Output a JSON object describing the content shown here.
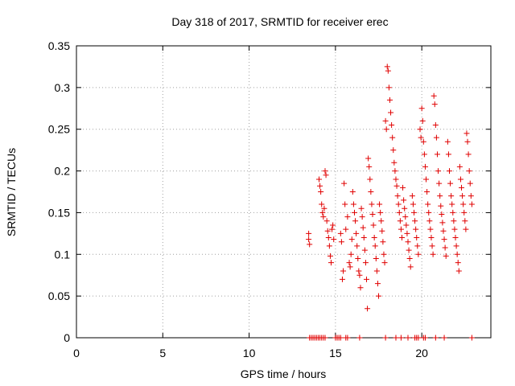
{
  "chart_data": {
    "type": "scatter",
    "title": "Day 318 of 2017, SRMTID for receiver erec",
    "xlabel": "GPS time / hours",
    "ylabel": "SRMTID / TECUs",
    "xlim": [
      0,
      24
    ],
    "ylim": [
      0,
      0.35
    ],
    "grid": true,
    "marker": "+",
    "marker_color": "#e00000",
    "x_ticks": [
      "0",
      "5",
      "10",
      "15",
      "20"
    ],
    "y_ticks": [
      "0",
      "0.05",
      "0.1",
      "0.15",
      "0.2",
      "0.25",
      "0.3",
      "0.35"
    ],
    "series": [
      {
        "name": "SRMTID",
        "points": [
          [
            13.45,
            0.125
          ],
          [
            13.45,
            0.118
          ],
          [
            13.5,
            0.112
          ],
          [
            14.05,
            0.19
          ],
          [
            14.1,
            0.182
          ],
          [
            14.15,
            0.175
          ],
          [
            14.2,
            0.16
          ],
          [
            14.25,
            0.15
          ],
          [
            14.3,
            0.145
          ],
          [
            14.35,
            0.155
          ],
          [
            14.4,
            0.2
          ],
          [
            14.45,
            0.195
          ],
          [
            14.5,
            0.14
          ],
          [
            14.55,
            0.128
          ],
          [
            14.6,
            0.12
          ],
          [
            14.65,
            0.11
          ],
          [
            14.7,
            0.098
          ],
          [
            14.75,
            0.09
          ],
          [
            14.8,
            0.13
          ],
          [
            14.85,
            0.135
          ],
          [
            14.9,
            0.118
          ],
          [
            15.3,
            0.125
          ],
          [
            15.35,
            0.115
          ],
          [
            15.4,
            0.07
          ],
          [
            15.45,
            0.08
          ],
          [
            15.5,
            0.185
          ],
          [
            15.55,
            0.16
          ],
          [
            15.6,
            0.13
          ],
          [
            15.7,
            0.145
          ],
          [
            15.8,
            0.09
          ],
          [
            15.85,
            0.085
          ],
          [
            15.9,
            0.1
          ],
          [
            15.95,
            0.118
          ],
          [
            16.0,
            0.175
          ],
          [
            16.05,
            0.16
          ],
          [
            16.1,
            0.15
          ],
          [
            16.15,
            0.14
          ],
          [
            16.2,
            0.125
          ],
          [
            16.25,
            0.11
          ],
          [
            16.3,
            0.095
          ],
          [
            16.35,
            0.08
          ],
          [
            16.4,
            0.075
          ],
          [
            16.45,
            0.06
          ],
          [
            16.5,
            0.155
          ],
          [
            16.55,
            0.145
          ],
          [
            16.6,
            0.132
          ],
          [
            16.65,
            0.12
          ],
          [
            16.7,
            0.105
          ],
          [
            16.75,
            0.09
          ],
          [
            16.8,
            0.07
          ],
          [
            16.85,
            0.035
          ],
          [
            16.9,
            0.215
          ],
          [
            16.95,
            0.205
          ],
          [
            17.0,
            0.19
          ],
          [
            17.05,
            0.175
          ],
          [
            17.1,
            0.16
          ],
          [
            17.15,
            0.148
          ],
          [
            17.2,
            0.135
          ],
          [
            17.25,
            0.12
          ],
          [
            17.3,
            0.11
          ],
          [
            17.35,
            0.095
          ],
          [
            17.4,
            0.08
          ],
          [
            17.45,
            0.065
          ],
          [
            17.5,
            0.05
          ],
          [
            17.55,
            0.16
          ],
          [
            17.6,
            0.15
          ],
          [
            17.65,
            0.14
          ],
          [
            17.7,
            0.128
          ],
          [
            17.75,
            0.115
          ],
          [
            17.8,
            0.1
          ],
          [
            17.85,
            0.09
          ],
          [
            17.9,
            0.26
          ],
          [
            17.95,
            0.25
          ],
          [
            18.0,
            0.325
          ],
          [
            18.05,
            0.32
          ],
          [
            18.1,
            0.3
          ],
          [
            18.15,
            0.285
          ],
          [
            18.2,
            0.27
          ],
          [
            18.25,
            0.255
          ],
          [
            18.3,
            0.24
          ],
          [
            18.35,
            0.225
          ],
          [
            18.4,
            0.21
          ],
          [
            18.45,
            0.2
          ],
          [
            18.5,
            0.19
          ],
          [
            18.55,
            0.182
          ],
          [
            18.6,
            0.17
          ],
          [
            18.65,
            0.16
          ],
          [
            18.7,
            0.15
          ],
          [
            18.75,
            0.14
          ],
          [
            18.8,
            0.13
          ],
          [
            18.85,
            0.12
          ],
          [
            18.9,
            0.18
          ],
          [
            18.95,
            0.165
          ],
          [
            19.0,
            0.155
          ],
          [
            19.05,
            0.145
          ],
          [
            19.1,
            0.135
          ],
          [
            19.15,
            0.125
          ],
          [
            19.2,
            0.115
          ],
          [
            19.25,
            0.105
          ],
          [
            19.3,
            0.095
          ],
          [
            19.35,
            0.085
          ],
          [
            19.45,
            0.17
          ],
          [
            19.5,
            0.16
          ],
          [
            19.55,
            0.15
          ],
          [
            19.6,
            0.14
          ],
          [
            19.65,
            0.13
          ],
          [
            19.7,
            0.12
          ],
          [
            19.75,
            0.11
          ],
          [
            19.8,
            0.1
          ],
          [
            19.9,
            0.25
          ],
          [
            19.95,
            0.24
          ],
          [
            20.0,
            0.275
          ],
          [
            20.05,
            0.26
          ],
          [
            20.1,
            0.235
          ],
          [
            20.15,
            0.22
          ],
          [
            20.2,
            0.205
          ],
          [
            20.25,
            0.19
          ],
          [
            20.3,
            0.175
          ],
          [
            20.35,
            0.16
          ],
          [
            20.4,
            0.15
          ],
          [
            20.45,
            0.14
          ],
          [
            20.5,
            0.13
          ],
          [
            20.55,
            0.12
          ],
          [
            20.6,
            0.11
          ],
          [
            20.65,
            0.1
          ],
          [
            20.7,
            0.29
          ],
          [
            20.75,
            0.28
          ],
          [
            20.8,
            0.255
          ],
          [
            20.85,
            0.24
          ],
          [
            20.9,
            0.22
          ],
          [
            20.95,
            0.2
          ],
          [
            21.0,
            0.185
          ],
          [
            21.05,
            0.17
          ],
          [
            21.1,
            0.158
          ],
          [
            21.15,
            0.148
          ],
          [
            21.2,
            0.138
          ],
          [
            21.25,
            0.128
          ],
          [
            21.3,
            0.118
          ],
          [
            21.35,
            0.108
          ],
          [
            21.4,
            0.098
          ],
          [
            21.5,
            0.235
          ],
          [
            21.55,
            0.22
          ],
          [
            21.6,
            0.2
          ],
          [
            21.65,
            0.185
          ],
          [
            21.7,
            0.17
          ],
          [
            21.75,
            0.16
          ],
          [
            21.8,
            0.15
          ],
          [
            21.85,
            0.14
          ],
          [
            21.9,
            0.13
          ],
          [
            21.95,
            0.12
          ],
          [
            22.0,
            0.11
          ],
          [
            22.05,
            0.1
          ],
          [
            22.1,
            0.09
          ],
          [
            22.15,
            0.08
          ],
          [
            22.2,
            0.205
          ],
          [
            22.25,
            0.19
          ],
          [
            22.3,
            0.18
          ],
          [
            22.35,
            0.17
          ],
          [
            22.4,
            0.16
          ],
          [
            22.45,
            0.15
          ],
          [
            22.5,
            0.14
          ],
          [
            22.55,
            0.13
          ],
          [
            22.6,
            0.245
          ],
          [
            22.65,
            0.235
          ],
          [
            22.7,
            0.22
          ],
          [
            22.75,
            0.2
          ],
          [
            22.8,
            0.185
          ],
          [
            22.85,
            0.17
          ],
          [
            22.9,
            0.16
          ],
          [
            13.5,
            0.0
          ],
          [
            13.6,
            0.0
          ],
          [
            13.7,
            0.0
          ],
          [
            13.8,
            0.0
          ],
          [
            13.9,
            0.0
          ],
          [
            14.0,
            0.0
          ],
          [
            14.1,
            0.0
          ],
          [
            14.2,
            0.0
          ],
          [
            14.3,
            0.0
          ],
          [
            14.4,
            0.0
          ],
          [
            15.0,
            0.0
          ],
          [
            15.1,
            0.0
          ],
          [
            15.2,
            0.0
          ],
          [
            15.3,
            0.0
          ],
          [
            15.6,
            0.0
          ],
          [
            15.7,
            0.0
          ],
          [
            16.4,
            0.0
          ],
          [
            17.9,
            0.0
          ],
          [
            18.5,
            0.0
          ],
          [
            18.8,
            0.0
          ],
          [
            19.2,
            0.0
          ],
          [
            19.6,
            0.0
          ],
          [
            19.7,
            0.0
          ],
          [
            19.8,
            0.0
          ],
          [
            20.1,
            0.0
          ],
          [
            20.2,
            0.0
          ],
          [
            20.8,
            0.0
          ],
          [
            21.3,
            0.0
          ],
          [
            22.9,
            0.0
          ]
        ]
      }
    ]
  }
}
